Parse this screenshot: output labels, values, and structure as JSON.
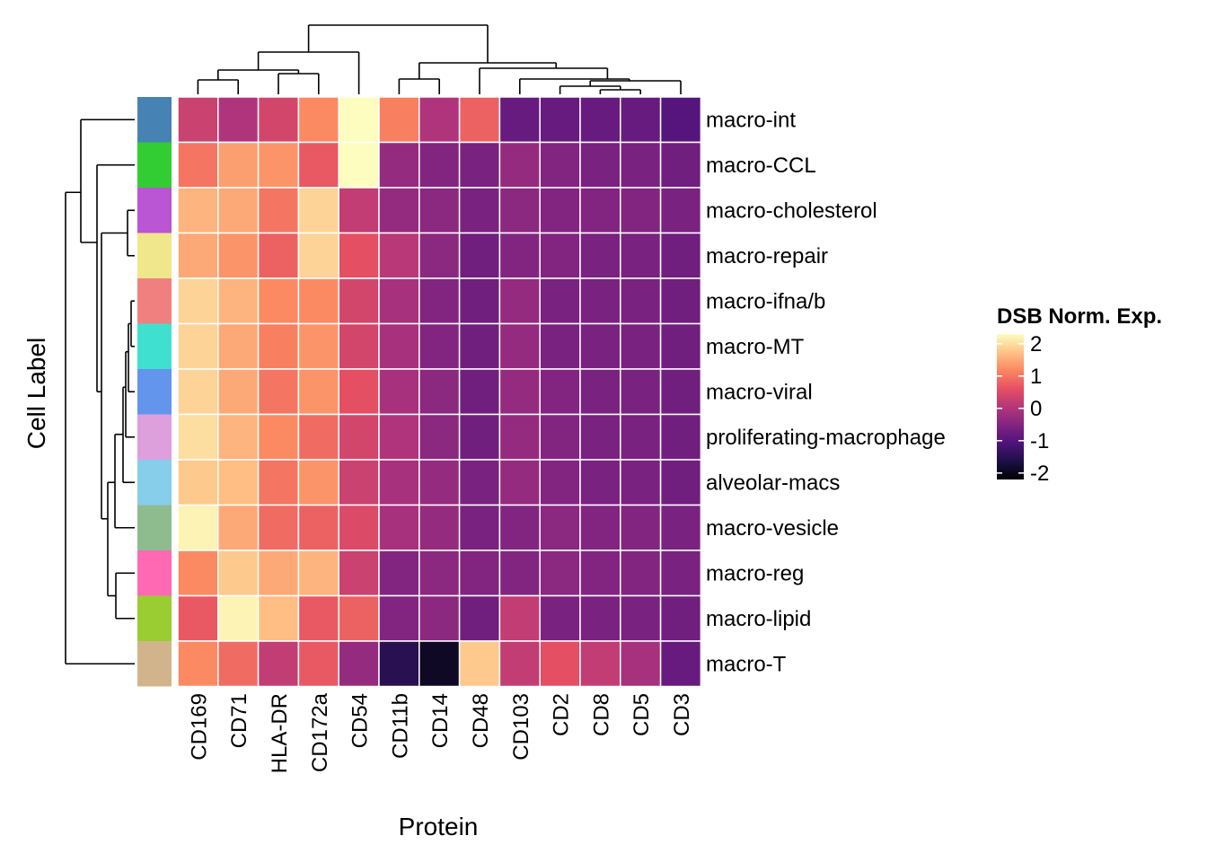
{
  "chart_data": {
    "type": "heatmap",
    "title": "",
    "xlabel": "Protein",
    "ylabel": "Cell Label",
    "columns": [
      "CD169",
      "CD71",
      "HLA-DR",
      "CD172a",
      "CD54",
      "CD11b",
      "CD14",
      "CD48",
      "CD103",
      "CD2",
      "CD8",
      "CD5",
      "CD3"
    ],
    "rows": [
      "macro-int",
      "macro-CCL",
      "macro-cholesterol",
      "macro-repair",
      "macro-ifna/b",
      "macro-MT",
      "macro-viral",
      "proliferating-macrophage",
      "alveolar-macs",
      "macro-vesicle",
      "macro-reg",
      "macro-lipid",
      "macro-T"
    ],
    "row_annotation_colors": [
      "#4682B4",
      "#32CD32",
      "#BA55D3",
      "#F0E68C",
      "#F08080",
      "#40E0D0",
      "#6495ED",
      "#DDA0DD",
      "#87CEEB",
      "#8FBC8F",
      "#FF69B4",
      "#9ACD32",
      "#D2B48C"
    ],
    "values": [
      [
        0.3,
        0.0,
        0.4,
        1.2,
        2.3,
        1.1,
        0.0,
        0.8,
        -0.8,
        -0.8,
        -0.8,
        -0.8,
        -1.0
      ],
      [
        1.0,
        1.4,
        1.3,
        0.7,
        2.3,
        -0.3,
        -0.5,
        -0.6,
        -0.3,
        -0.5,
        -0.6,
        -0.6,
        -0.7
      ],
      [
        1.6,
        1.5,
        1.0,
        1.9,
        0.2,
        -0.3,
        -0.4,
        -0.6,
        -0.4,
        -0.5,
        -0.5,
        -0.5,
        -0.6
      ],
      [
        1.5,
        1.3,
        0.8,
        1.9,
        0.6,
        0.1,
        -0.4,
        -0.7,
        -0.5,
        -0.5,
        -0.6,
        -0.6,
        -0.7
      ],
      [
        1.9,
        1.6,
        1.2,
        1.2,
        0.4,
        -0.1,
        -0.5,
        -0.7,
        -0.3,
        -0.6,
        -0.6,
        -0.6,
        -0.7
      ],
      [
        1.9,
        1.5,
        1.1,
        1.3,
        0.4,
        -0.1,
        -0.5,
        -0.7,
        -0.3,
        -0.6,
        -0.6,
        -0.6,
        -0.7
      ],
      [
        1.9,
        1.5,
        1.0,
        1.3,
        0.6,
        -0.1,
        -0.4,
        -0.7,
        -0.3,
        -0.5,
        -0.6,
        -0.6,
        -0.7
      ],
      [
        2.0,
        1.6,
        1.2,
        0.9,
        0.4,
        0.0,
        -0.4,
        -0.7,
        -0.3,
        -0.5,
        -0.6,
        -0.6,
        -0.7
      ],
      [
        1.8,
        1.7,
        1.0,
        1.3,
        0.3,
        -0.1,
        -0.3,
        -0.6,
        -0.3,
        -0.5,
        -0.6,
        -0.6,
        -0.7
      ],
      [
        2.2,
        1.5,
        0.9,
        0.8,
        0.5,
        -0.1,
        -0.3,
        -0.6,
        -0.5,
        -0.4,
        -0.5,
        -0.5,
        -0.6
      ],
      [
        1.2,
        1.8,
        1.5,
        1.6,
        0.3,
        -0.5,
        -0.4,
        -0.5,
        -0.5,
        -0.4,
        -0.5,
        -0.5,
        -0.6
      ],
      [
        0.7,
        2.2,
        1.7,
        0.7,
        0.8,
        -0.5,
        -0.4,
        -0.7,
        0.2,
        -0.6,
        -0.6,
        -0.6,
        -0.7
      ],
      [
        1.2,
        0.9,
        0.2,
        0.7,
        -0.3,
        -1.5,
        -1.9,
        1.8,
        0.2,
        0.6,
        0.2,
        -0.1,
        -0.8
      ]
    ],
    "legend": {
      "title": "DSB Norm. Exp.",
      "ticks": [
        2,
        1,
        0,
        -1,
        -2
      ],
      "tick_labels": [
        "2",
        "1",
        "0",
        "-1",
        "-2"
      ],
      "range": [
        -2.2,
        2.3
      ],
      "colormap": "magma",
      "placement": "right"
    }
  }
}
